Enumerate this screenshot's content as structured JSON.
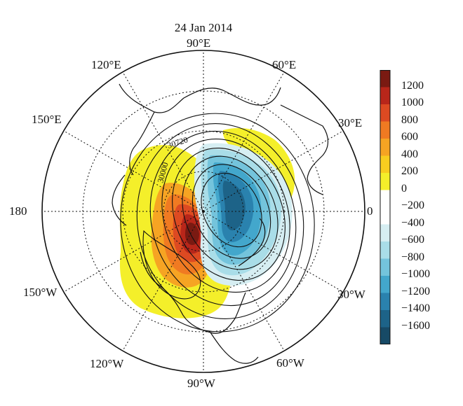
{
  "title": "24 Jan 2014",
  "longitude_labels": {
    "e90": "90°E",
    "e120": "120°E",
    "e60": "60°E",
    "e150": "150°E",
    "e30": "30°E",
    "lon180": "180",
    "lon0": "0",
    "w150": "150°W",
    "w30": "30°W",
    "w120": "120°W",
    "w60": "60°W",
    "w90": "90°W"
  },
  "contour_labels": [
    "30720",
    "30000"
  ],
  "colorbar": {
    "labels": [
      "1200",
      "1000",
      "800",
      "600",
      "400",
      "200",
      "0",
      "−200",
      "−400",
      "−600",
      "−800",
      "−1000",
      "−1200",
      "−1400",
      "−1600"
    ],
    "colors": [
      "#7a1a12",
      "#b8261a",
      "#dd4a22",
      "#f07a22",
      "#f6a423",
      "#f8cd1f",
      "#f4ef2a",
      "#ffffff",
      "#ffffff",
      "#d6eef2",
      "#a9dde8",
      "#74c4dc",
      "#43a7cc",
      "#2a82ae",
      "#1d6388",
      "#174a66"
    ]
  },
  "anomaly_centers": {
    "positive_max": 1200,
    "negative_min": -1600
  }
}
